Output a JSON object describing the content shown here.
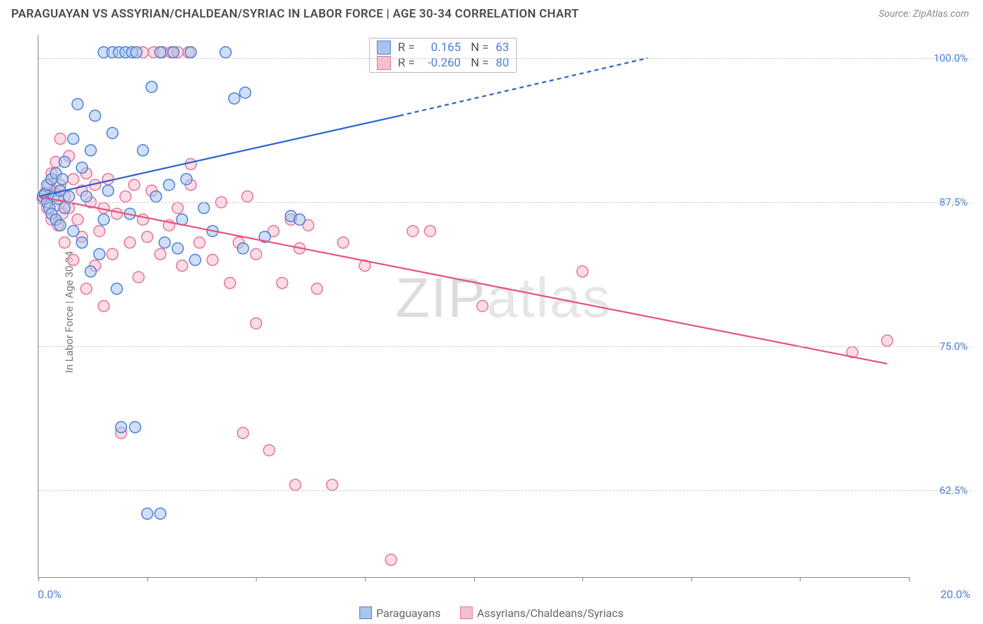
{
  "header": {
    "title": "PARAGUAYAN VS ASSYRIAN/CHALDEAN/SYRIAC IN LABOR FORCE | AGE 30-34 CORRELATION CHART",
    "source": "Source: ZipAtlas.com"
  },
  "chart": {
    "type": "scatter",
    "ylabel": "In Labor Force | Age 30-34",
    "xlim": [
      0,
      20
    ],
    "ylim": [
      55,
      102
    ],
    "x_ticks": [
      0,
      2.5,
      5,
      7.5,
      10,
      12.5,
      15,
      17.5,
      20
    ],
    "x_tick_labels": {
      "left": "0.0%",
      "right": "20.0%"
    },
    "y_grid": [
      {
        "v": 62.5,
        "label": "62.5%"
      },
      {
        "v": 75.0,
        "label": "75.0%"
      },
      {
        "v": 87.5,
        "label": "87.5%"
      },
      {
        "v": 100.0,
        "label": "100.0%"
      }
    ],
    "background_color": "#ffffff",
    "grid_color": "#cccccc",
    "axis_color": "#888888",
    "marker_radius": 8,
    "marker_opacity": 0.55,
    "series": [
      {
        "name": "Paraguayans",
        "color_fill": "#a9c5ec",
        "color_stroke": "#4a80d6",
        "R": "0.165",
        "N": "63",
        "trend": {
          "x1": 0,
          "y1": 88.0,
          "x2": 8.3,
          "y2": 95.0,
          "color": "#2a62c8",
          "width": 2.2
        },
        "trend_ext": {
          "x1": 8.3,
          "y1": 95.0,
          "x2": 14.0,
          "y2": 100.0,
          "dash": true
        },
        "points": [
          [
            0.1,
            88
          ],
          [
            0.15,
            88.2
          ],
          [
            0.2,
            87.5
          ],
          [
            0.2,
            89
          ],
          [
            0.25,
            87
          ],
          [
            0.3,
            86.5
          ],
          [
            0.3,
            89.5
          ],
          [
            0.35,
            88
          ],
          [
            0.4,
            90
          ],
          [
            0.4,
            86
          ],
          [
            0.45,
            87.8
          ],
          [
            0.5,
            88.5
          ],
          [
            0.5,
            85.5
          ],
          [
            0.55,
            89.5
          ],
          [
            0.6,
            87
          ],
          [
            0.6,
            91
          ],
          [
            0.7,
            88
          ],
          [
            0.8,
            93
          ],
          [
            0.8,
            85
          ],
          [
            0.9,
            96
          ],
          [
            1.0,
            90.5
          ],
          [
            1.0,
            84
          ],
          [
            1.1,
            88
          ],
          [
            1.2,
            92
          ],
          [
            1.2,
            81.5
          ],
          [
            1.3,
            95
          ],
          [
            1.4,
            83
          ],
          [
            1.5,
            86
          ],
          [
            1.5,
            100.5
          ],
          [
            1.6,
            88.5
          ],
          [
            1.7,
            93.5
          ],
          [
            1.7,
            100.5
          ],
          [
            1.8,
            80
          ],
          [
            1.85,
            100.5
          ],
          [
            1.9,
            68
          ],
          [
            2.0,
            100.5
          ],
          [
            2.1,
            86.5
          ],
          [
            2.15,
            100.5
          ],
          [
            2.22,
            68
          ],
          [
            2.25,
            100.5
          ],
          [
            2.4,
            92
          ],
          [
            2.5,
            60.5
          ],
          [
            2.6,
            97.5
          ],
          [
            2.7,
            88
          ],
          [
            2.8,
            60.5
          ],
          [
            2.8,
            100.5
          ],
          [
            2.9,
            84
          ],
          [
            3.0,
            89
          ],
          [
            3.1,
            100.5
          ],
          [
            3.2,
            83.5
          ],
          [
            3.3,
            86
          ],
          [
            3.4,
            89.5
          ],
          [
            3.5,
            100.5
          ],
          [
            3.6,
            82.5
          ],
          [
            3.8,
            87
          ],
          [
            4.0,
            85
          ],
          [
            4.3,
            100.5
          ],
          [
            4.5,
            96.5
          ],
          [
            4.7,
            83.5
          ],
          [
            4.75,
            97
          ],
          [
            5.2,
            84.5
          ],
          [
            5.8,
            86.3
          ],
          [
            6.0,
            86.0
          ]
        ]
      },
      {
        "name": "Assyrians/Chaldeans/Syriacs",
        "color_fill": "#f4c0cf",
        "color_stroke": "#e77498",
        "R": "-0.260",
        "N": "80",
        "trend": {
          "x1": 0,
          "y1": 88.0,
          "x2": 19.5,
          "y2": 73.5,
          "color": "#e5527f",
          "width": 2.2
        },
        "points": [
          [
            0.1,
            87.8
          ],
          [
            0.15,
            88.3
          ],
          [
            0.2,
            87
          ],
          [
            0.25,
            89
          ],
          [
            0.3,
            86
          ],
          [
            0.3,
            90
          ],
          [
            0.35,
            88.5
          ],
          [
            0.4,
            87.2
          ],
          [
            0.4,
            91
          ],
          [
            0.45,
            85.5
          ],
          [
            0.5,
            89
          ],
          [
            0.5,
            93
          ],
          [
            0.55,
            86.5
          ],
          [
            0.6,
            88
          ],
          [
            0.6,
            84
          ],
          [
            0.7,
            91.5
          ],
          [
            0.7,
            87
          ],
          [
            0.8,
            89.5
          ],
          [
            0.8,
            82.5
          ],
          [
            0.9,
            86
          ],
          [
            1.0,
            88.5
          ],
          [
            1.0,
            84.5
          ],
          [
            1.1,
            90
          ],
          [
            1.1,
            80
          ],
          [
            1.2,
            87.5
          ],
          [
            1.3,
            82
          ],
          [
            1.3,
            89
          ],
          [
            1.4,
            85
          ],
          [
            1.5,
            78.5
          ],
          [
            1.5,
            87
          ],
          [
            1.6,
            89.5
          ],
          [
            1.7,
            83
          ],
          [
            1.8,
            86.5
          ],
          [
            1.9,
            67.5
          ],
          [
            2.0,
            88
          ],
          [
            2.1,
            84
          ],
          [
            2.2,
            89
          ],
          [
            2.3,
            81
          ],
          [
            2.4,
            86
          ],
          [
            2.4,
            100.5
          ],
          [
            2.5,
            84.5
          ],
          [
            2.6,
            88.5
          ],
          [
            2.65,
            100.5
          ],
          [
            2.8,
            83
          ],
          [
            2.85,
            100.5
          ],
          [
            3.0,
            85.5
          ],
          [
            3.05,
            100.5
          ],
          [
            3.2,
            87
          ],
          [
            3.2,
            100.5
          ],
          [
            3.3,
            82
          ],
          [
            3.45,
            100.5
          ],
          [
            3.5,
            89
          ],
          [
            3.5,
            90.8
          ],
          [
            3.7,
            84
          ],
          [
            4.0,
            82.5
          ],
          [
            4.2,
            87.5
          ],
          [
            4.4,
            80.5
          ],
          [
            4.6,
            84
          ],
          [
            4.7,
            67.5
          ],
          [
            4.8,
            88
          ],
          [
            5.0,
            83
          ],
          [
            5.0,
            77
          ],
          [
            5.3,
            66
          ],
          [
            5.4,
            85
          ],
          [
            5.6,
            80.5
          ],
          [
            5.8,
            86
          ],
          [
            5.9,
            63
          ],
          [
            6.0,
            83.5
          ],
          [
            6.2,
            85.5
          ],
          [
            6.4,
            80
          ],
          [
            6.75,
            63
          ],
          [
            7.0,
            84
          ],
          [
            7.5,
            82
          ],
          [
            8.1,
            56.5
          ],
          [
            8.6,
            85
          ],
          [
            9.0,
            85
          ],
          [
            10.2,
            78.5
          ],
          [
            12.5,
            81.5
          ],
          [
            18.7,
            74.5
          ],
          [
            19.5,
            75.5
          ]
        ]
      }
    ],
    "watermark": {
      "text_bold": "ZIP",
      "text_thin": "atlas",
      "font_size": 80
    }
  },
  "footer": {
    "items": [
      "Paraguayans",
      "Assyrians/Chaldeans/Syriacs"
    ]
  }
}
